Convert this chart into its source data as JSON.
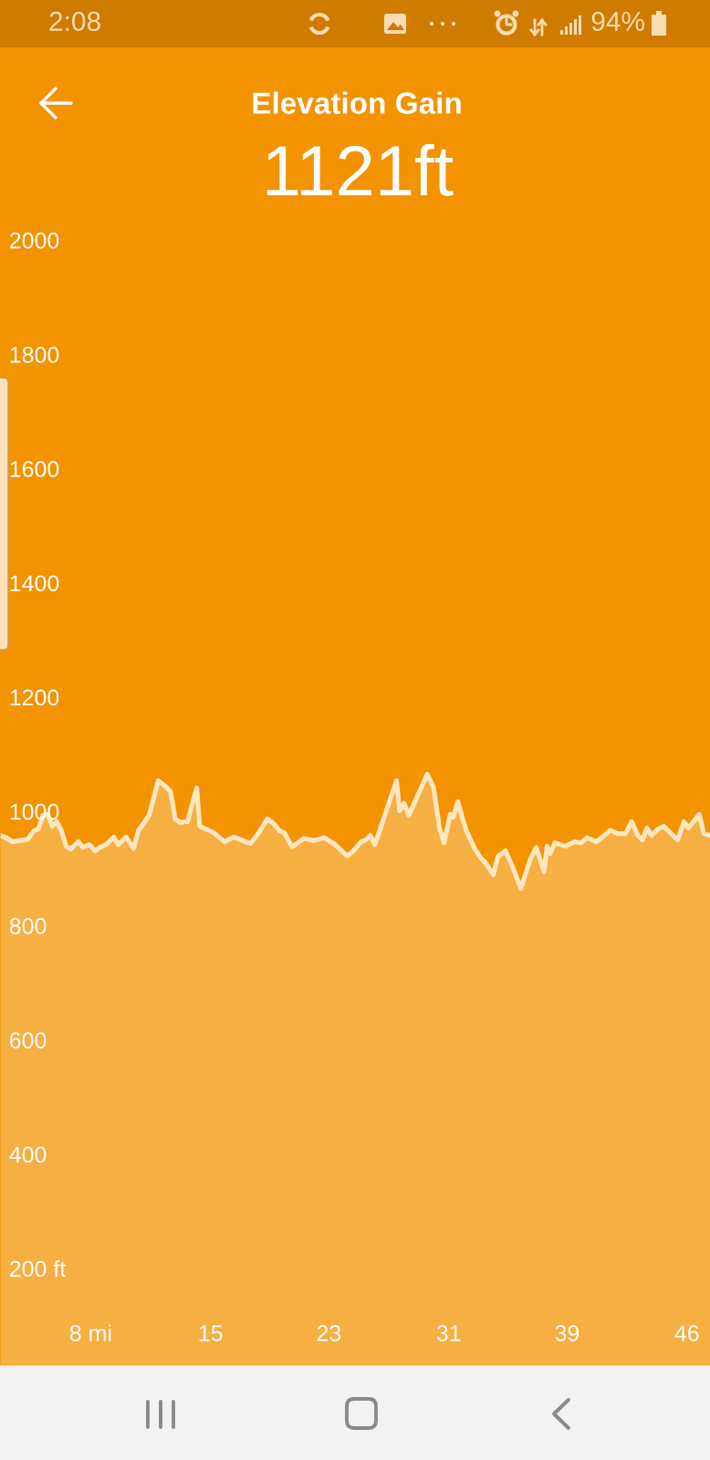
{
  "chart_data": {
    "type": "area",
    "title": "Elevation Gain",
    "subtitle": "1121ft",
    "annotations": [
      "2:08",
      "94%"
    ],
    "x": [
      1.7,
      2.1,
      2.5,
      3.5,
      3.9,
      4.2,
      4.5,
      4.8,
      5.1,
      5.4,
      5.7,
      6.0,
      6.3,
      6.8,
      7.1,
      7.5,
      7.9,
      8.2,
      8.6,
      9.1,
      9.4,
      9.9,
      10.4,
      10.7,
      11.4,
      12.0,
      12.5,
      12.8,
      13.1,
      13.4,
      13.9,
      14.5,
      14.7,
      15.6,
      16.3,
      16.9,
      17.4,
      18.0,
      18.5,
      19.1,
      19.5,
      19.9,
      20.2,
      20.7,
      21.5,
      22.1,
      22.8,
      23.5,
      24.3,
      24.7,
      25.2,
      25.5,
      25.8,
      26.1,
      27.5,
      27.7,
      28.0,
      28.3,
      29.5,
      29.9,
      30.3,
      30.6,
      31.0,
      31.2,
      31.5,
      31.8,
      32.1,
      32.6,
      33.0,
      33.3,
      33.8,
      34.1,
      34.6,
      35.1,
      35.6,
      36.2,
      36.6,
      37.1,
      37.3,
      37.5,
      37.8,
      38.5,
      39.1,
      39.5,
      39.9,
      40.5,
      40.9,
      41.4,
      41.9,
      42.4,
      42.8,
      43.2,
      43.5,
      43.8,
      44.1,
      44.5,
      44.9,
      45.3,
      45.8,
      46.2,
      46.5,
      47.2,
      47.5,
      47.9
    ],
    "series": [
      {
        "color": "#fde6c0",
        "values": [
          958,
          954,
          947,
          951,
          966,
          969,
          993,
          995,
          974,
          982,
          966,
          939,
          934,
          947,
          937,
          942,
          931,
          937,
          942,
          955,
          942,
          955,
          935,
          966,
          993,
          1054,
          1043,
          1035,
          987,
          981,
          982,
          1041,
          974,
          963,
          947,
          955,
          950,
          944,
          961,
          987,
          979,
          966,
          963,
          938,
          953,
          949,
          954,
          942,
          922,
          931,
          947,
          950,
          958,
          942,
          1054,
          1001,
          1014,
          993,
          1065,
          1043,
          971,
          945,
          995,
          990,
          1017,
          987,
          963,
          934,
          918,
          910,
          889,
          921,
          931,
          900,
          865,
          916,
          937,
          894,
          939,
          926,
          945,
          939,
          947,
          945,
          954,
          947,
          955,
          967,
          961,
          961,
          982,
          958,
          950,
          971,
          958,
          969,
          974,
          963,
          950,
          982,
          971,
          995,
          961,
          958
        ]
      }
    ],
    "xlim": [
      1.7,
      47.9
    ],
    "xticks": [
      {
        "value": 7.6,
        "label": "8 mi"
      },
      {
        "value": 15.4,
        "label": "15"
      },
      {
        "value": 23.1,
        "label": "23"
      },
      {
        "value": 30.9,
        "label": "31"
      },
      {
        "value": 38.6,
        "label": "39"
      },
      {
        "value": 46.4,
        "label": "46"
      }
    ],
    "ylim": [
      30,
      2037
    ],
    "yticks": [
      {
        "value": 200,
        "label": "200 ft"
      },
      400,
      600,
      800,
      1000,
      1200,
      1400,
      1600,
      1800,
      2000
    ],
    "grid": false
  }
}
